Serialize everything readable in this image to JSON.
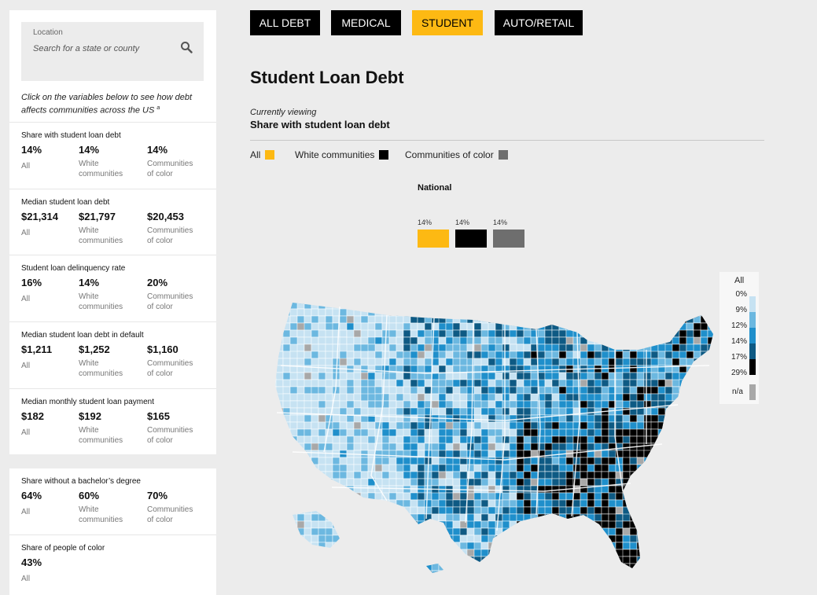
{
  "search": {
    "label": "Location",
    "placeholder": "Search for a state or county"
  },
  "intro": {
    "text": "Click on the variables below to see how debt affects communities across the US",
    "sup": "a"
  },
  "variables": [
    {
      "title": "Share with student loan debt",
      "all": "14%",
      "white": "14%",
      "color": "14%"
    },
    {
      "title": "Median student loan debt",
      "all": "$21,314",
      "white": "$21,797",
      "color": "$20,453"
    },
    {
      "title": "Student loan delinquency rate",
      "all": "16%",
      "white": "14%",
      "color": "20%"
    },
    {
      "title": "Median student loan debt in default",
      "all": "$1,211",
      "white": "$1,252",
      "color": "$1,160"
    },
    {
      "title": "Median monthly student loan payment",
      "all": "$182",
      "white": "$192",
      "color": "$165"
    }
  ],
  "demographics": [
    {
      "title": "Share without a bachelor’s degree",
      "all": "64%",
      "white": "60%",
      "color": "70%"
    },
    {
      "title": "Share of people of color",
      "all": "43%"
    }
  ],
  "labels": {
    "all": "All",
    "white_1": "White",
    "white_2": "communities",
    "color_1": "Communities",
    "color_2": "of color"
  },
  "tabs": [
    "ALL DEBT",
    "MEDICAL",
    "STUDENT",
    "AUTO/RETAIL"
  ],
  "active_tab": "STUDENT",
  "title": "Student Loan Debt",
  "currently_viewing": {
    "label": "Currently viewing",
    "value": "Share with student loan debt"
  },
  "legend": [
    {
      "label": "All",
      "color": "#fdb913"
    },
    {
      "label": "White communities",
      "color": "#000000"
    },
    {
      "label": "Communities of color",
      "color": "#6e6e6e"
    }
  ],
  "national": {
    "label": "National",
    "all": "14%",
    "white": "14%",
    "color": "14%"
  },
  "scale": {
    "title": "All",
    "ticks": [
      "0%",
      "9%",
      "12%",
      "14%",
      "17%",
      "29%"
    ],
    "colors": [
      "#c6e2f2",
      "#6cb8e0",
      "#1f8fcb",
      "#0e5a84",
      "#000000"
    ],
    "na_label": "n/a",
    "na_color": "#a8a8a8"
  }
}
